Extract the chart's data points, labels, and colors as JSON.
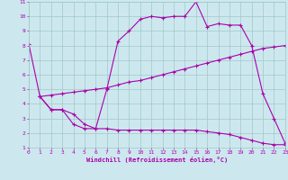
{
  "title": "",
  "xlabel": "Windchill (Refroidissement éolien,°C)",
  "bg_color": "#cce8ee",
  "grid_color": "#a0c8c8",
  "line_color": "#aa00aa",
  "xlim": [
    0,
    23
  ],
  "ylim": [
    1,
    11
  ],
  "xticks": [
    0,
    1,
    2,
    3,
    4,
    5,
    6,
    7,
    8,
    9,
    10,
    11,
    12,
    13,
    14,
    15,
    16,
    17,
    18,
    19,
    20,
    21,
    22,
    23
  ],
  "yticks": [
    1,
    2,
    3,
    4,
    5,
    6,
    7,
    8,
    9,
    10,
    11
  ],
  "line1_x": [
    0,
    1,
    2,
    3,
    4,
    5,
    6,
    7,
    8,
    9,
    10,
    11,
    12,
    13,
    14,
    15,
    16,
    17,
    18,
    19,
    20,
    21,
    22,
    23
  ],
  "line1_y": [
    8.1,
    4.5,
    3.6,
    3.6,
    2.6,
    2.3,
    2.3,
    5.0,
    8.3,
    9.0,
    9.8,
    10.0,
    9.9,
    10.0,
    10.0,
    11.0,
    9.3,
    9.5,
    9.4,
    9.4,
    8.0,
    4.7,
    3.0,
    1.3
  ],
  "line2_x": [
    1,
    2,
    3,
    4,
    5,
    6,
    7,
    8,
    9,
    10,
    11,
    12,
    13,
    14,
    15,
    16,
    17,
    18,
    19,
    20,
    21,
    22,
    23
  ],
  "line2_y": [
    4.5,
    4.6,
    4.7,
    4.8,
    4.9,
    5.0,
    5.1,
    5.3,
    5.5,
    5.6,
    5.8,
    6.0,
    6.2,
    6.4,
    6.6,
    6.8,
    7.0,
    7.2,
    7.4,
    7.6,
    7.8,
    7.9,
    8.0
  ],
  "line3_x": [
    1,
    2,
    3,
    4,
    5,
    6,
    7,
    8,
    9,
    10,
    11,
    12,
    13,
    14,
    15,
    16,
    17,
    18,
    19,
    20,
    21,
    22,
    23
  ],
  "line3_y": [
    4.5,
    3.6,
    3.6,
    3.3,
    2.6,
    2.3,
    2.3,
    2.2,
    2.2,
    2.2,
    2.2,
    2.2,
    2.2,
    2.2,
    2.2,
    2.1,
    2.0,
    1.9,
    1.7,
    1.5,
    1.3,
    1.2,
    1.2
  ]
}
